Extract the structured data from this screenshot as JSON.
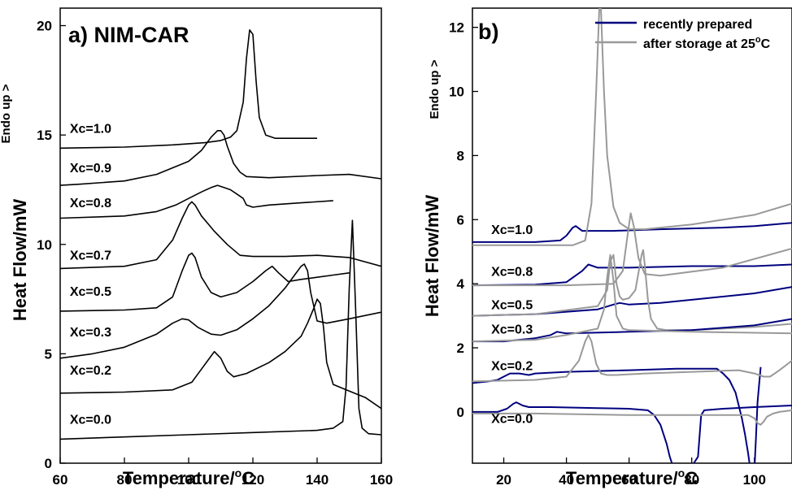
{
  "chart_data": [
    {
      "panel_label": "a) NIM-CAR",
      "type": "line",
      "xlabel": "Temperature/",
      "xlabel_unit": "C",
      "ylabel": "Heat Flow/mW",
      "ylabel_top": "Endo up >",
      "xlim": [
        60,
        160
      ],
      "ylim": [
        0,
        20.8
      ],
      "xticks": [
        "60",
        "80",
        "100",
        "120",
        "140",
        "160"
      ],
      "yticks": [
        "0",
        "5",
        "10",
        "15",
        "20"
      ],
      "series": [
        {
          "name": "Xc=1.0",
          "label_at": [
            63,
            15.1
          ],
          "color": "#000000",
          "x": [
            60,
            80,
            95,
            105,
            110,
            113,
            115,
            117,
            118,
            119,
            120,
            121,
            122,
            124,
            127,
            130,
            135,
            140
          ],
          "y": [
            14.4,
            14.45,
            14.55,
            14.65,
            14.75,
            14.9,
            15.2,
            16.5,
            18.5,
            19.8,
            19.6,
            17.5,
            15.8,
            15.0,
            14.85,
            14.85,
            14.85,
            14.85
          ]
        },
        {
          "name": "Xc=0.9",
          "label_at": [
            63,
            13.3
          ],
          "color": "#000000",
          "x": [
            60,
            66,
            80,
            90,
            100,
            104,
            107,
            109,
            110,
            111,
            112,
            114,
            116,
            118,
            125,
            140,
            150,
            160
          ],
          "y": [
            12.7,
            12.75,
            12.9,
            13.2,
            13.8,
            14.3,
            14.9,
            15.2,
            15.2,
            15.0,
            14.5,
            13.7,
            13.3,
            13.1,
            13.05,
            13.15,
            13.2,
            13.0
          ]
        },
        {
          "name": "Xc=0.8",
          "label_at": [
            63,
            11.7
          ],
          "color": "#000000",
          "x": [
            60,
            80,
            90,
            96,
            100,
            104,
            107,
            109,
            111,
            113,
            115,
            117,
            118,
            120,
            125,
            135,
            145
          ],
          "y": [
            11.2,
            11.3,
            11.5,
            11.8,
            12.1,
            12.4,
            12.6,
            12.7,
            12.6,
            12.5,
            12.3,
            12.1,
            11.8,
            11.7,
            11.8,
            11.9,
            12.0
          ]
        },
        {
          "name": "Xc=0.7",
          "label_at": [
            63,
            9.3
          ],
          "color": "#000000",
          "x": [
            60,
            80,
            90,
            95,
            98,
            100,
            101,
            102,
            104,
            108,
            112,
            116,
            120,
            124,
            130,
            140,
            150,
            160
          ],
          "y": [
            8.9,
            9.0,
            9.3,
            10.2,
            11.2,
            11.8,
            11.95,
            11.8,
            11.3,
            10.6,
            10.0,
            9.5,
            9.45,
            9.45,
            9.45,
            9.5,
            9.4,
            9.0
          ]
        },
        {
          "name": "Xc=0.5",
          "label_at": [
            63,
            7.65
          ],
          "color": "#000000",
          "x": [
            60,
            80,
            90,
            95,
            98,
            100,
            101,
            102,
            104,
            107,
            110,
            115,
            120,
            124,
            126,
            128,
            131,
            135,
            140,
            145,
            150
          ],
          "y": [
            6.95,
            7.0,
            7.1,
            7.6,
            8.8,
            9.5,
            9.6,
            9.4,
            8.5,
            7.8,
            7.6,
            7.8,
            8.3,
            8.8,
            9.0,
            8.7,
            8.3,
            8.4,
            8.5,
            8.6,
            8.7
          ]
        },
        {
          "name": "Xc=0.3",
          "label_at": [
            63,
            5.8
          ],
          "color": "#000000",
          "x": [
            60,
            70,
            80,
            90,
            95,
            98,
            100,
            103,
            107,
            110,
            115,
            120,
            125,
            130,
            133,
            135,
            136,
            137,
            138,
            140,
            143,
            150,
            160
          ],
          "y": [
            4.8,
            5.0,
            5.3,
            5.9,
            6.4,
            6.6,
            6.55,
            6.2,
            5.9,
            5.85,
            6.1,
            6.6,
            7.2,
            8.0,
            8.6,
            9.0,
            9.1,
            8.8,
            7.8,
            6.5,
            6.4,
            6.6,
            6.9
          ]
        },
        {
          "name": "Xc=0.2",
          "label_at": [
            63,
            4.05
          ],
          "color": "#000000",
          "x": [
            60,
            80,
            95,
            101,
            104,
            107,
            108,
            110,
            112,
            114,
            118,
            125,
            130,
            135,
            137,
            139,
            140,
            141,
            142,
            143,
            145,
            150,
            155,
            160
          ],
          "y": [
            3.2,
            3.25,
            3.35,
            3.7,
            4.3,
            4.9,
            5.1,
            4.8,
            4.2,
            3.95,
            4.1,
            4.6,
            5.1,
            5.8,
            6.4,
            7.1,
            7.5,
            7.3,
            6.2,
            4.6,
            3.6,
            3.3,
            3.0,
            2.5
          ]
        },
        {
          "name": "Xc=0.0",
          "label_at": [
            63,
            1.8
          ],
          "color": "#000000",
          "x": [
            60,
            80,
            100,
            120,
            140,
            145,
            148,
            149,
            150,
            151,
            152,
            153,
            154,
            156,
            160
          ],
          "y": [
            1.1,
            1.2,
            1.3,
            1.4,
            1.5,
            1.6,
            1.9,
            3.5,
            8.0,
            11.1,
            7.0,
            2.5,
            1.6,
            1.35,
            1.3
          ]
        }
      ]
    },
    {
      "panel_label": "b)",
      "type": "line",
      "xlabel": "Temperature/",
      "xlabel_unit": "C",
      "ylabel": "Heat Flow/mW",
      "ylabel_top": "Endo up >",
      "xlim": [
        10,
        112
      ],
      "ylim": [
        -1.6,
        12.6
      ],
      "xticks": [
        "20",
        "40",
        "60",
        "80",
        "100"
      ],
      "yticks": [
        "0",
        "2",
        "4",
        "6",
        "8",
        "10",
        "12"
      ],
      "legend": {
        "placement": "top-right",
        "entries": [
          "recently prepared",
          "after storage at 25"
        ],
        "entry_unit": "C"
      },
      "series": [
        {
          "name": "Xc=1.0 recently prepared",
          "color": "#00007f",
          "x": [
            10,
            20,
            30,
            38,
            40,
            42,
            43,
            45,
            47,
            55,
            70,
            90,
            100,
            112
          ],
          "y": [
            5.3,
            5.3,
            5.3,
            5.35,
            5.5,
            5.75,
            5.8,
            5.65,
            5.65,
            5.65,
            5.7,
            5.75,
            5.8,
            5.9
          ]
        },
        {
          "name": "Xc=1.0 after storage",
          "color": "#999999",
          "x": [
            10,
            30,
            42,
            46,
            48,
            49.5,
            50.5,
            51,
            52,
            53,
            55,
            57,
            60,
            65,
            80,
            100,
            112
          ],
          "y": [
            5.2,
            5.2,
            5.2,
            5.35,
            6.5,
            10.0,
            12.6,
            12.6,
            10.0,
            8.0,
            6.4,
            5.9,
            5.7,
            5.7,
            5.85,
            6.15,
            6.5
          ]
        },
        {
          "name": "Xc=0.8 recently prepared",
          "color": "#00007f",
          "x": [
            10,
            30,
            40,
            45,
            47,
            50,
            60,
            80,
            100,
            112
          ],
          "y": [
            3.95,
            3.97,
            4.05,
            4.4,
            4.6,
            4.5,
            4.5,
            4.55,
            4.55,
            4.6
          ]
        },
        {
          "name": "Xc=0.8 after storage",
          "color": "#999999",
          "x": [
            10,
            40,
            55,
            58,
            59.5,
            60.5,
            61.5,
            63,
            65,
            70,
            90,
            112
          ],
          "y": [
            3.95,
            3.95,
            4.0,
            4.4,
            5.5,
            6.2,
            5.8,
            4.8,
            4.3,
            4.25,
            4.5,
            5.1
          ]
        },
        {
          "name": "Xc=0.5 recently prepared",
          "color": "#00007f",
          "x": [
            10,
            30,
            50,
            55,
            57,
            60,
            70,
            80,
            100,
            112
          ],
          "y": [
            3.0,
            3.05,
            3.2,
            3.35,
            3.4,
            3.35,
            3.4,
            3.5,
            3.7,
            3.9
          ]
        },
        {
          "name": "Xc=0.5 after storage",
          "color": "#999999",
          "x": [
            10,
            30,
            50,
            53,
            54,
            55,
            56,
            57,
            58,
            60,
            62,
            64,
            64.5,
            65,
            66,
            67,
            69,
            72,
            80,
            100,
            112
          ],
          "y": [
            3.0,
            3.05,
            3.3,
            3.8,
            4.7,
            4.9,
            4.0,
            3.6,
            3.5,
            3.55,
            3.8,
            4.9,
            5.05,
            4.6,
            3.5,
            2.9,
            2.6,
            2.55,
            2.55,
            2.65,
            2.75
          ]
        },
        {
          "name": "Xc=0.3 recently prepared",
          "color": "#00007f",
          "x": [
            10,
            20,
            30,
            35,
            37,
            40,
            60,
            80,
            100,
            112
          ],
          "y": [
            2.2,
            2.2,
            2.3,
            2.4,
            2.5,
            2.45,
            2.5,
            2.55,
            2.7,
            2.9
          ]
        },
        {
          "name": "Xc=0.3 after storage",
          "color": "#999999",
          "x": [
            10,
            30,
            40,
            50,
            52,
            53,
            54,
            55,
            56,
            58,
            60,
            80,
            112
          ],
          "y": [
            2.2,
            2.25,
            2.4,
            2.6,
            3.2,
            4.2,
            4.9,
            4.1,
            3.0,
            2.6,
            2.55,
            2.5,
            2.45
          ]
        },
        {
          "name": "Xc=0.2 recently prepared",
          "color": "#00007f",
          "x": [
            10,
            15,
            18,
            20,
            22,
            25,
            28,
            30,
            40,
            60,
            75,
            88,
            90,
            92,
            94,
            95,
            96,
            97,
            98,
            99,
            100,
            100.5,
            101,
            102
          ],
          "y": [
            0.9,
            0.95,
            1.0,
            1.1,
            1.2,
            1.2,
            1.15,
            1.2,
            1.25,
            1.3,
            1.35,
            1.35,
            1.2,
            1.0,
            0.6,
            0.2,
            -0.2,
            -0.7,
            -1.3,
            -2.0,
            -1.8,
            -0.8,
            0.3,
            1.4
          ]
        },
        {
          "name": "Xc=0.2 after storage",
          "color": "#999999",
          "x": [
            10,
            30,
            40,
            44,
            46,
            47,
            48,
            49.5,
            51,
            53,
            56,
            65,
            80,
            95,
            100,
            103,
            105,
            108,
            112
          ],
          "y": [
            0.95,
            1.0,
            1.1,
            1.6,
            2.2,
            2.4,
            2.2,
            1.5,
            1.2,
            1.15,
            1.15,
            1.2,
            1.25,
            1.3,
            1.2,
            1.1,
            1.1,
            1.3,
            1.6
          ]
        },
        {
          "name": "Xc=0.0 recently prepared",
          "color": "#00007f",
          "x": [
            10,
            18,
            21,
            23,
            24,
            25,
            26,
            28,
            35,
            50,
            60,
            66,
            68,
            70,
            72,
            73,
            74,
            80,
            82,
            83,
            84,
            90,
            100,
            112
          ],
          "y": [
            0.0,
            0.0,
            0.1,
            0.25,
            0.3,
            0.25,
            0.2,
            0.15,
            0.15,
            0.12,
            0.1,
            0.05,
            -0.1,
            -0.4,
            -1.0,
            -1.4,
            -1.7,
            -1.7,
            -1.4,
            -0.1,
            0.05,
            0.1,
            0.15,
            0.2
          ]
        },
        {
          "name": "Xc=0.0 after storage",
          "color": "#999999",
          "x": [
            10,
            30,
            60,
            90,
            98,
            100,
            101,
            102,
            103,
            104,
            106,
            108,
            112
          ],
          "y": [
            -0.05,
            -0.05,
            -0.1,
            -0.1,
            -0.1,
            -0.2,
            -0.35,
            -0.4,
            -0.3,
            -0.15,
            -0.05,
            0.0,
            0.05
          ]
        }
      ],
      "labels": [
        {
          "text": "Xc=1.0",
          "at": [
            16,
            5.55
          ]
        },
        {
          "text": "Xc=0.8",
          "at": [
            16,
            4.25
          ]
        },
        {
          "text": "Xc=0.5",
          "at": [
            16,
            3.2
          ]
        },
        {
          "text": "Xc=0.3",
          "at": [
            16,
            2.45
          ]
        },
        {
          "text": "Xc=0.2",
          "at": [
            16,
            1.3
          ]
        },
        {
          "text": "Xc=0.0",
          "at": [
            16,
            -0.35
          ]
        }
      ]
    }
  ]
}
